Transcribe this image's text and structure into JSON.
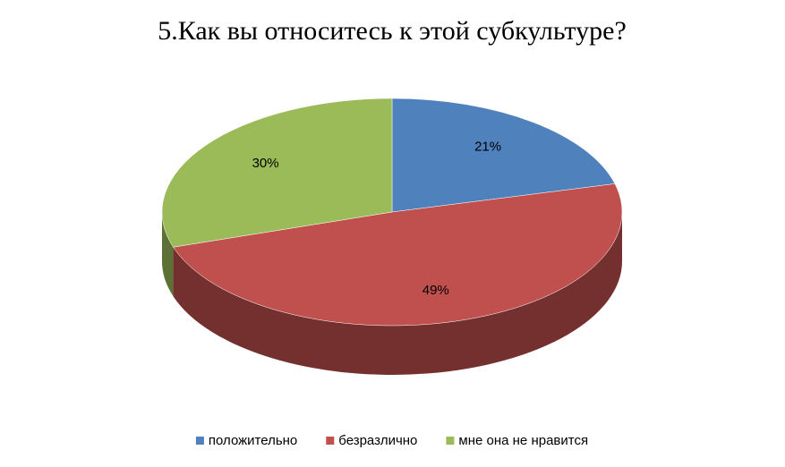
{
  "chart_data": {
    "type": "pie",
    "title": "5.Как вы относитесь к этой субкультуре?",
    "categories": [
      "положительно",
      "безразлично",
      "мне она не нравится"
    ],
    "values": [
      21,
      49,
      30
    ],
    "value_labels": [
      "21%",
      "49%",
      "30%"
    ],
    "colors": [
      "#4f81bd",
      "#c0504d",
      "#9bbb59"
    ],
    "legend": "bottom"
  }
}
